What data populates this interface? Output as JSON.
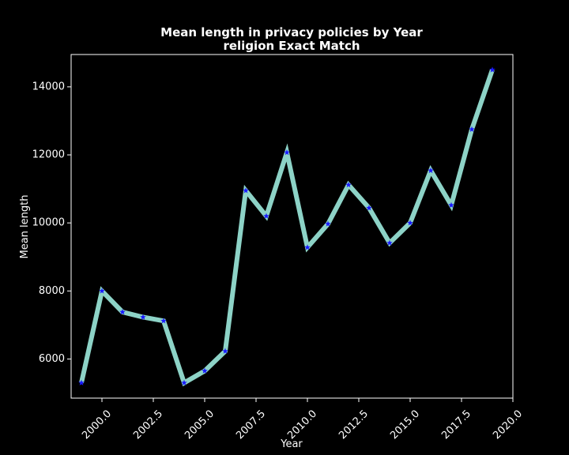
{
  "chart_data": {
    "type": "line",
    "title": "Mean length in privacy policies by Year",
    "subtitle": "religion Exact Match",
    "xlabel": "Year",
    "ylabel": "Mean length",
    "xlim": [
      1998.5,
      2020.0
    ],
    "ylim": [
      4850,
      14950
    ],
    "x_ticks": [
      2000.0,
      2002.5,
      2005.0,
      2007.5,
      2010.0,
      2012.5,
      2015.0,
      2017.5,
      2020.0
    ],
    "x_tick_labels": [
      "2000.0",
      "2002.5",
      "2005.0",
      "2007.5",
      "2010.0",
      "2012.5",
      "2015.0",
      "2017.5",
      "2020.0"
    ],
    "y_ticks": [
      6000,
      8000,
      10000,
      12000,
      14000
    ],
    "y_tick_labels": [
      "6000",
      "8000",
      "10000",
      "12000",
      "14000"
    ],
    "grid": false,
    "series": [
      {
        "name": "Mean length",
        "line_color": "#8dd3c7",
        "marker_color": "#1a1aff",
        "marker": "star",
        "x": [
          1999,
          2000,
          2001,
          2002,
          2003,
          2004,
          2005,
          2006,
          2007,
          2008,
          2009,
          2010,
          2011,
          2012,
          2013,
          2014,
          2015,
          2016,
          2017,
          2018,
          2019
        ],
        "values": [
          5300,
          8000,
          7380,
          7230,
          7120,
          5300,
          5650,
          6230,
          10950,
          10200,
          12070,
          9280,
          9970,
          11120,
          10440,
          9410,
          10000,
          11540,
          10520,
          12750,
          14500
        ]
      }
    ]
  }
}
